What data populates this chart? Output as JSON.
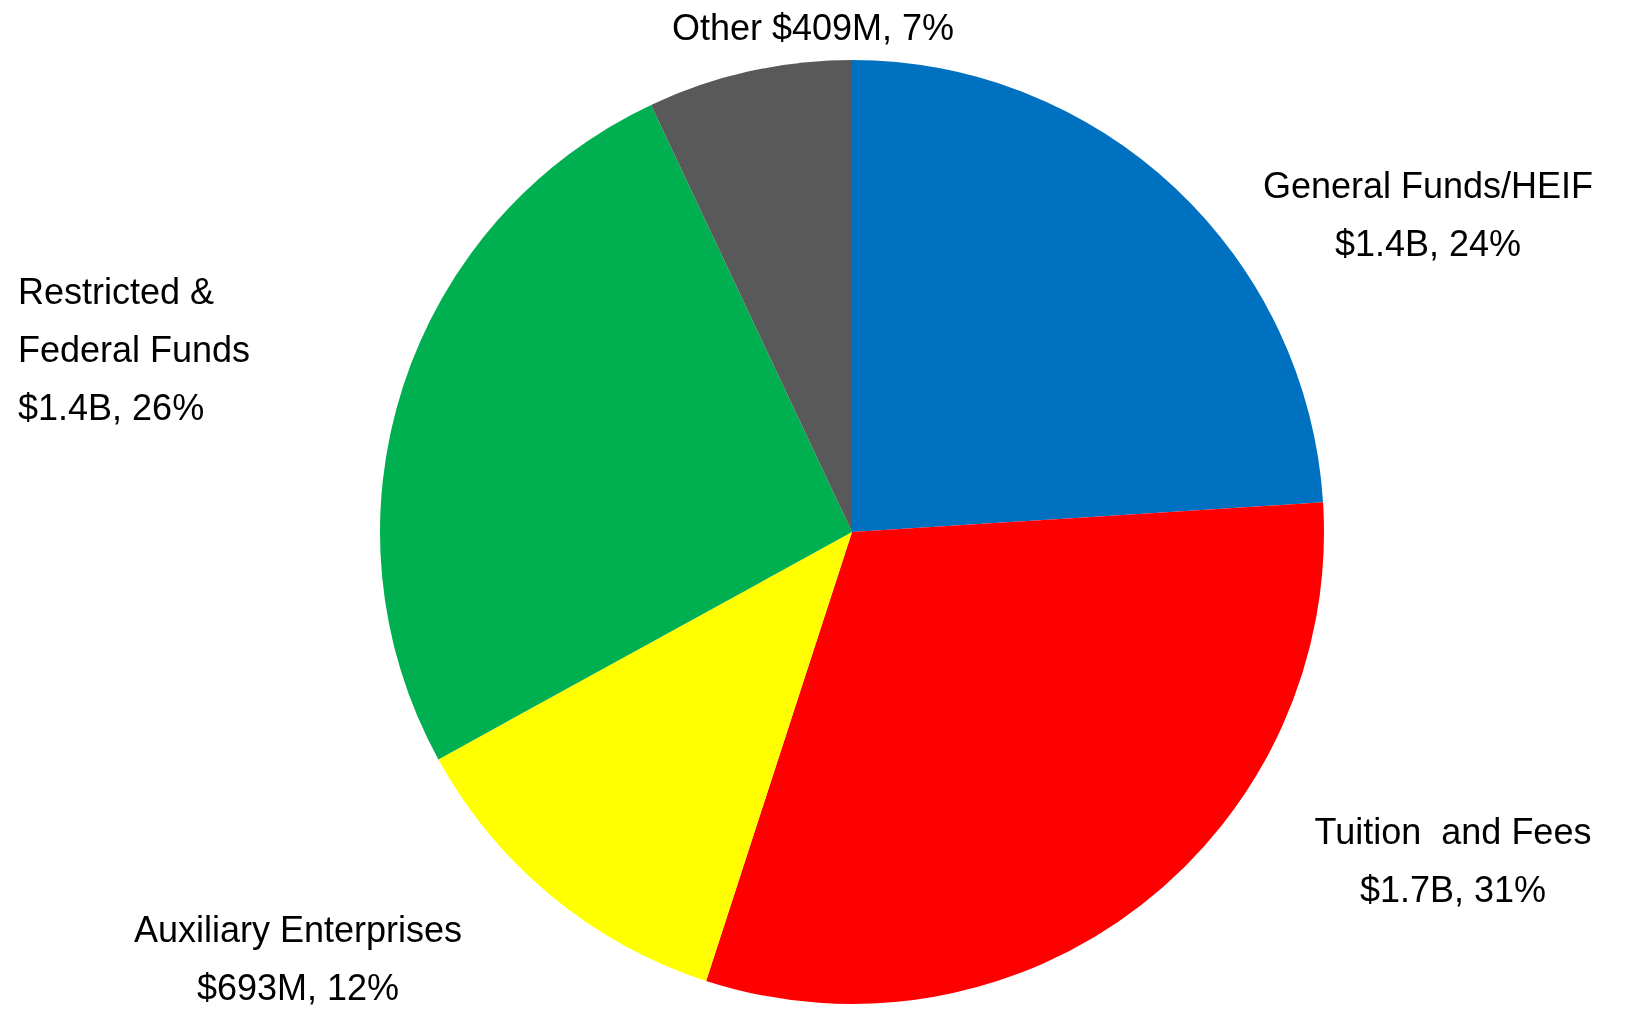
{
  "chart_data": {
    "type": "pie",
    "categories": [
      "General Funds/HEIF",
      "Tuition  and Fees",
      "Auxiliary Enterprises",
      "Restricted & Federal Funds",
      "Other"
    ],
    "values": [
      24,
      31,
      12,
      26,
      7
    ],
    "colors": [
      "#0070c0",
      "#ff0000",
      "#ffff00",
      "#00b050",
      "#595959"
    ],
    "value_labels": [
      "$1.4B, 24%",
      "$1.7B, 31%",
      "$693M, 12%",
      "$1.4B, 26%",
      "$409M, 7%"
    ],
    "legend": false
  }
}
